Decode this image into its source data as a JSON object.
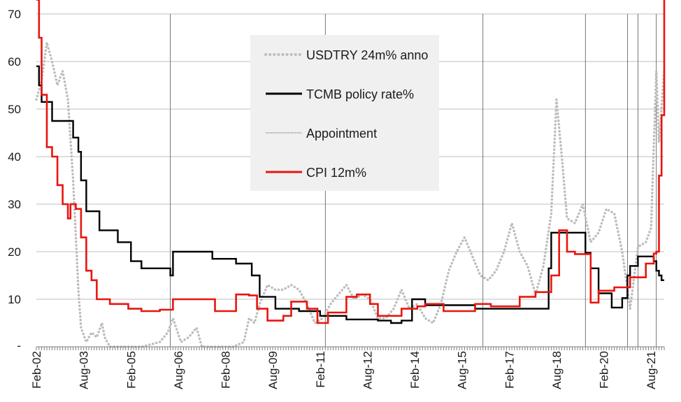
{
  "chart_data": {
    "type": "line",
    "title": "",
    "xlabel": "",
    "ylabel": "",
    "ylim": [
      0,
      70
    ],
    "xlim": [
      "2002-02",
      "2022-01"
    ],
    "grid": true,
    "legend_position": "upper center",
    "y_ticks": [
      70,
      60,
      50,
      40,
      30,
      20,
      10
    ],
    "y_zero_label": "-",
    "x_ticks": [
      {
        "label": "Feb-02",
        "date": "2002-02"
      },
      {
        "label": "Aug-03",
        "date": "2003-08"
      },
      {
        "label": "Feb-05",
        "date": "2005-02"
      },
      {
        "label": "Aug-06",
        "date": "2006-08"
      },
      {
        "label": "Feb-08",
        "date": "2008-02"
      },
      {
        "label": "Aug-09",
        "date": "2009-08"
      },
      {
        "label": "Feb-11",
        "date": "2011-02"
      },
      {
        "label": "Aug-12",
        "date": "2012-08"
      },
      {
        "label": "Feb-14",
        "date": "2014-02"
      },
      {
        "label": "Aug-15",
        "date": "2015-08"
      },
      {
        "label": "Feb-17",
        "date": "2017-02"
      },
      {
        "label": "Aug-18",
        "date": "2018-08"
      },
      {
        "label": "Feb-20",
        "date": "2020-02"
      },
      {
        "label": "Aug-21",
        "date": "2021-08"
      }
    ],
    "appointments": [
      "2006-05",
      "2011-04",
      "2016-04",
      "2019-07",
      "2020-11",
      "2021-03",
      "2021-10"
    ],
    "series": [
      {
        "name": "USDTRY 24m% anno",
        "style": "dotted",
        "color": "#bdbdbd",
        "points": [
          [
            "2002-02",
            52
          ],
          [
            "2002-04",
            56
          ],
          [
            "2002-06",
            64
          ],
          [
            "2002-08",
            60
          ],
          [
            "2002-10",
            55
          ],
          [
            "2002-12",
            58
          ],
          [
            "2003-02",
            52
          ],
          [
            "2003-04",
            35
          ],
          [
            "2003-06",
            12
          ],
          [
            "2003-07",
            4
          ],
          [
            "2003-09",
            1
          ],
          [
            "2003-11",
            3
          ],
          [
            "2004-01",
            2
          ],
          [
            "2004-03",
            5
          ],
          [
            "2004-04",
            2
          ],
          [
            "2004-06",
            0
          ],
          [
            "2005-06",
            0
          ],
          [
            "2006-01",
            1
          ],
          [
            "2006-04",
            3
          ],
          [
            "2006-06",
            6
          ],
          [
            "2006-09",
            1
          ],
          [
            "2006-12",
            2
          ],
          [
            "2007-03",
            4
          ],
          [
            "2007-05",
            0
          ],
          [
            "2008-05",
            0
          ],
          [
            "2008-09",
            1
          ],
          [
            "2008-11",
            6
          ],
          [
            "2009-01",
            5
          ],
          [
            "2009-03",
            9
          ],
          [
            "2009-06",
            13
          ],
          [
            "2009-09",
            12
          ],
          [
            "2009-12",
            12
          ],
          [
            "2010-03",
            13
          ],
          [
            "2010-06",
            12
          ],
          [
            "2010-09",
            9
          ],
          [
            "2010-12",
            5
          ],
          [
            "2011-03",
            6
          ],
          [
            "2011-06",
            9
          ],
          [
            "2011-09",
            11
          ],
          [
            "2011-12",
            13
          ],
          [
            "2012-03",
            10
          ],
          [
            "2012-06",
            11
          ],
          [
            "2012-09",
            10
          ],
          [
            "2012-12",
            6
          ],
          [
            "2013-03",
            6
          ],
          [
            "2013-06",
            8
          ],
          [
            "2013-09",
            12
          ],
          [
            "2013-12",
            8
          ],
          [
            "2014-03",
            9
          ],
          [
            "2014-06",
            6
          ],
          [
            "2014-09",
            5
          ],
          [
            "2014-12",
            9
          ],
          [
            "2015-03",
            16
          ],
          [
            "2015-06",
            20
          ],
          [
            "2015-09",
            23
          ],
          [
            "2015-12",
            19
          ],
          [
            "2016-03",
            15
          ],
          [
            "2016-06",
            14
          ],
          [
            "2016-09",
            16
          ],
          [
            "2016-12",
            20
          ],
          [
            "2017-03",
            26
          ],
          [
            "2017-06",
            20
          ],
          [
            "2017-09",
            17
          ],
          [
            "2017-12",
            11
          ],
          [
            "2018-03",
            17
          ],
          [
            "2018-06",
            28
          ],
          [
            "2018-08",
            52
          ],
          [
            "2018-10",
            40
          ],
          [
            "2018-12",
            27
          ],
          [
            "2019-03",
            26
          ],
          [
            "2019-06",
            30
          ],
          [
            "2019-09",
            22
          ],
          [
            "2019-12",
            24
          ],
          [
            "2020-03",
            29
          ],
          [
            "2020-06",
            28
          ],
          [
            "2020-09",
            20
          ],
          [
            "2020-12",
            8
          ],
          [
            "2021-03",
            21
          ],
          [
            "2021-06",
            22
          ],
          [
            "2021-08",
            25
          ],
          [
            "2021-10",
            58
          ],
          [
            "2021-11",
            43
          ],
          [
            "2022-01",
            58
          ]
        ]
      },
      {
        "name": "TCMB policy rate%",
        "style": "solid",
        "color": "#000000",
        "points": [
          [
            "2002-02",
            59
          ],
          [
            "2002-03",
            55
          ],
          [
            "2002-04",
            51.5
          ],
          [
            "2002-08",
            47.5
          ],
          [
            "2003-04",
            44
          ],
          [
            "2003-06",
            41
          ],
          [
            "2003-07",
            35
          ],
          [
            "2003-09",
            28.5
          ],
          [
            "2004-02",
            24.5
          ],
          [
            "2004-09",
            22
          ],
          [
            "2005-02",
            18
          ],
          [
            "2005-06",
            16.5
          ],
          [
            "2006-05",
            15
          ],
          [
            "2006-06",
            20
          ],
          [
            "2007-06",
            20
          ],
          [
            "2007-09",
            18.5
          ],
          [
            "2008-06",
            17.5
          ],
          [
            "2008-12",
            15
          ],
          [
            "2009-03",
            10.5
          ],
          [
            "2009-09",
            8
          ],
          [
            "2010-06",
            7.5
          ],
          [
            "2011-02",
            6.5
          ],
          [
            "2011-06",
            6.5
          ],
          [
            "2011-12",
            5.75
          ],
          [
            "2012-06",
            5.75
          ],
          [
            "2012-12",
            5.5
          ],
          [
            "2013-05",
            5
          ],
          [
            "2013-09",
            5.5
          ],
          [
            "2014-01",
            10
          ],
          [
            "2014-06",
            8.75
          ],
          [
            "2015-01",
            8.75
          ],
          [
            "2016-01",
            8
          ],
          [
            "2017-01",
            8
          ],
          [
            "2018-05",
            16.5
          ],
          [
            "2018-06",
            24
          ],
          [
            "2019-07",
            19.75
          ],
          [
            "2019-09",
            16.5
          ],
          [
            "2019-12",
            11.25
          ],
          [
            "2020-05",
            8.25
          ],
          [
            "2020-09",
            10.25
          ],
          [
            "2020-11",
            15
          ],
          [
            "2020-12",
            17
          ],
          [
            "2021-03",
            19
          ],
          [
            "2021-09",
            18
          ],
          [
            "2021-10",
            16
          ],
          [
            "2021-11",
            15
          ],
          [
            "2021-12",
            14
          ],
          [
            "2022-01",
            14
          ]
        ]
      },
      {
        "name": "CPI 12m%",
        "style": "solid",
        "color": "#e8150f",
        "points": [
          [
            "2002-02",
            73
          ],
          [
            "2002-03",
            65
          ],
          [
            "2002-04",
            53
          ],
          [
            "2002-06",
            42
          ],
          [
            "2002-08",
            40
          ],
          [
            "2002-10",
            34
          ],
          [
            "2002-12",
            30
          ],
          [
            "2003-02",
            27
          ],
          [
            "2003-03",
            30
          ],
          [
            "2003-05",
            29
          ],
          [
            "2003-07",
            23
          ],
          [
            "2003-09",
            16
          ],
          [
            "2003-11",
            14
          ],
          [
            "2004-01",
            10
          ],
          [
            "2004-06",
            9
          ],
          [
            "2005-01",
            8
          ],
          [
            "2005-06",
            7.5
          ],
          [
            "2006-01",
            7.8
          ],
          [
            "2006-06",
            10
          ],
          [
            "2007-06",
            10
          ],
          [
            "2007-10",
            7.5
          ],
          [
            "2008-06",
            11
          ],
          [
            "2008-11",
            10.8
          ],
          [
            "2009-02",
            8
          ],
          [
            "2009-06",
            5.5
          ],
          [
            "2009-12",
            6.5
          ],
          [
            "2010-03",
            9.5
          ],
          [
            "2010-09",
            8
          ],
          [
            "2011-01",
            5
          ],
          [
            "2011-05",
            7.2
          ],
          [
            "2011-12",
            10.5
          ],
          [
            "2012-04",
            11
          ],
          [
            "2012-09",
            9
          ],
          [
            "2012-12",
            6.5
          ],
          [
            "2013-04",
            6.5
          ],
          [
            "2013-09",
            8
          ],
          [
            "2014-03",
            8.5
          ],
          [
            "2014-06",
            9
          ],
          [
            "2015-01",
            7.5
          ],
          [
            "2015-06",
            7.5
          ],
          [
            "2016-01",
            9
          ],
          [
            "2016-07",
            8.5
          ],
          [
            "2016-12",
            8.5
          ],
          [
            "2017-06",
            10.5
          ],
          [
            "2017-12",
            11.5
          ],
          [
            "2018-06",
            15
          ],
          [
            "2018-09",
            24.5
          ],
          [
            "2018-12",
            20
          ],
          [
            "2019-03",
            19.5
          ],
          [
            "2019-09",
            9.3
          ],
          [
            "2019-12",
            11.8
          ],
          [
            "2020-06",
            12.5
          ],
          [
            "2020-12",
            14.6
          ],
          [
            "2021-06",
            17.5
          ],
          [
            "2021-09",
            19.6
          ],
          [
            "2021-10",
            20
          ],
          [
            "2021-11",
            36
          ],
          [
            "2021-12",
            48.7
          ],
          [
            "2022-01",
            73
          ]
        ]
      }
    ],
    "legend": [
      {
        "label": "USDTRY 24m% anno",
        "style": "dotted",
        "color": "#bdbdbd"
      },
      {
        "label": "TCMB policy rate%",
        "style": "solid",
        "color": "#000000"
      },
      {
        "label": "Appointment",
        "style": "thin",
        "color": "#555555"
      },
      {
        "label": "CPI 12m%",
        "style": "solid",
        "color": "#e8150f"
      }
    ]
  }
}
